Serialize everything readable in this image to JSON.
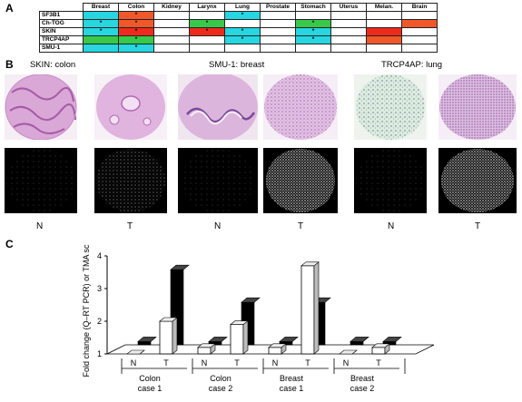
{
  "panels": {
    "a": "A",
    "b": "B",
    "c": "C"
  },
  "table": {
    "tissues": [
      "Breast",
      "Colon",
      "Kidney",
      "Larynx",
      "Lung",
      "Prostate",
      "Stomach",
      "Uterus",
      "Melan.",
      "Brain"
    ],
    "rows": [
      {
        "gene": "SF3B1",
        "cells": [
          "cyan",
          "red*",
          "",
          "",
          "cyan*",
          "",
          "",
          "",
          "",
          ""
        ]
      },
      {
        "gene": "Ch-TOG",
        "cells": [
          "cyan*",
          "red*",
          "",
          "green*",
          "",
          "",
          "green*",
          "",
          "",
          "red"
        ]
      },
      {
        "gene": "SKIN",
        "cells": [
          "cyan*",
          "redd*",
          "",
          "redd*",
          "cyan*",
          "",
          "cyan*",
          "",
          "redd",
          ""
        ]
      },
      {
        "gene": "TRCP4AP",
        "cells": [
          "green",
          "green*",
          "",
          "",
          "cyan*",
          "",
          "cyan*",
          "",
          "red",
          ""
        ]
      },
      {
        "gene": "SMU-1",
        "cells": [
          "cyan",
          "cyan*",
          "",
          "",
          "",
          "",
          "",
          "",
          "",
          ""
        ]
      }
    ],
    "colors": {
      "cyan": "#26d6e0",
      "red": "#f0582a",
      "green": "#38c94a",
      "redd": "#ee2a1c"
    }
  },
  "panel_b": {
    "titles": [
      "SKIN: colon",
      "SMU-1: breast",
      "TRCP4AP: lung"
    ],
    "n_label": "N",
    "t_label": "T"
  },
  "chart_data": {
    "type": "bar",
    "ylabel": "Fold change (Q–RT PCR) or TMA score",
    "ylim": [
      1,
      4
    ],
    "yticks": [
      1,
      2,
      3,
      4
    ],
    "categories": [
      "Colon case 1",
      "Colon case 2",
      "Breast case 1",
      "Breast case 2"
    ],
    "category_lines": [
      [
        "Colon",
        "case 1"
      ],
      [
        "Colon",
        "case 2"
      ],
      [
        "Breast",
        "case 1"
      ],
      [
        "Breast",
        "case 2"
      ]
    ],
    "sub_labels": [
      "N",
      "T"
    ],
    "series": [
      {
        "values": [
          [
            1.0,
            2.0
          ],
          [
            1.2,
            1.9
          ],
          [
            1.2,
            3.7
          ],
          [
            1.0,
            1.2
          ]
        ],
        "color": "#ffffff"
      },
      {
        "values": [
          [
            1.1,
            3.3
          ],
          [
            1.1,
            2.3
          ],
          [
            1.1,
            2.3
          ],
          [
            1.1,
            1.1
          ]
        ],
        "color": "#000000"
      }
    ]
  }
}
